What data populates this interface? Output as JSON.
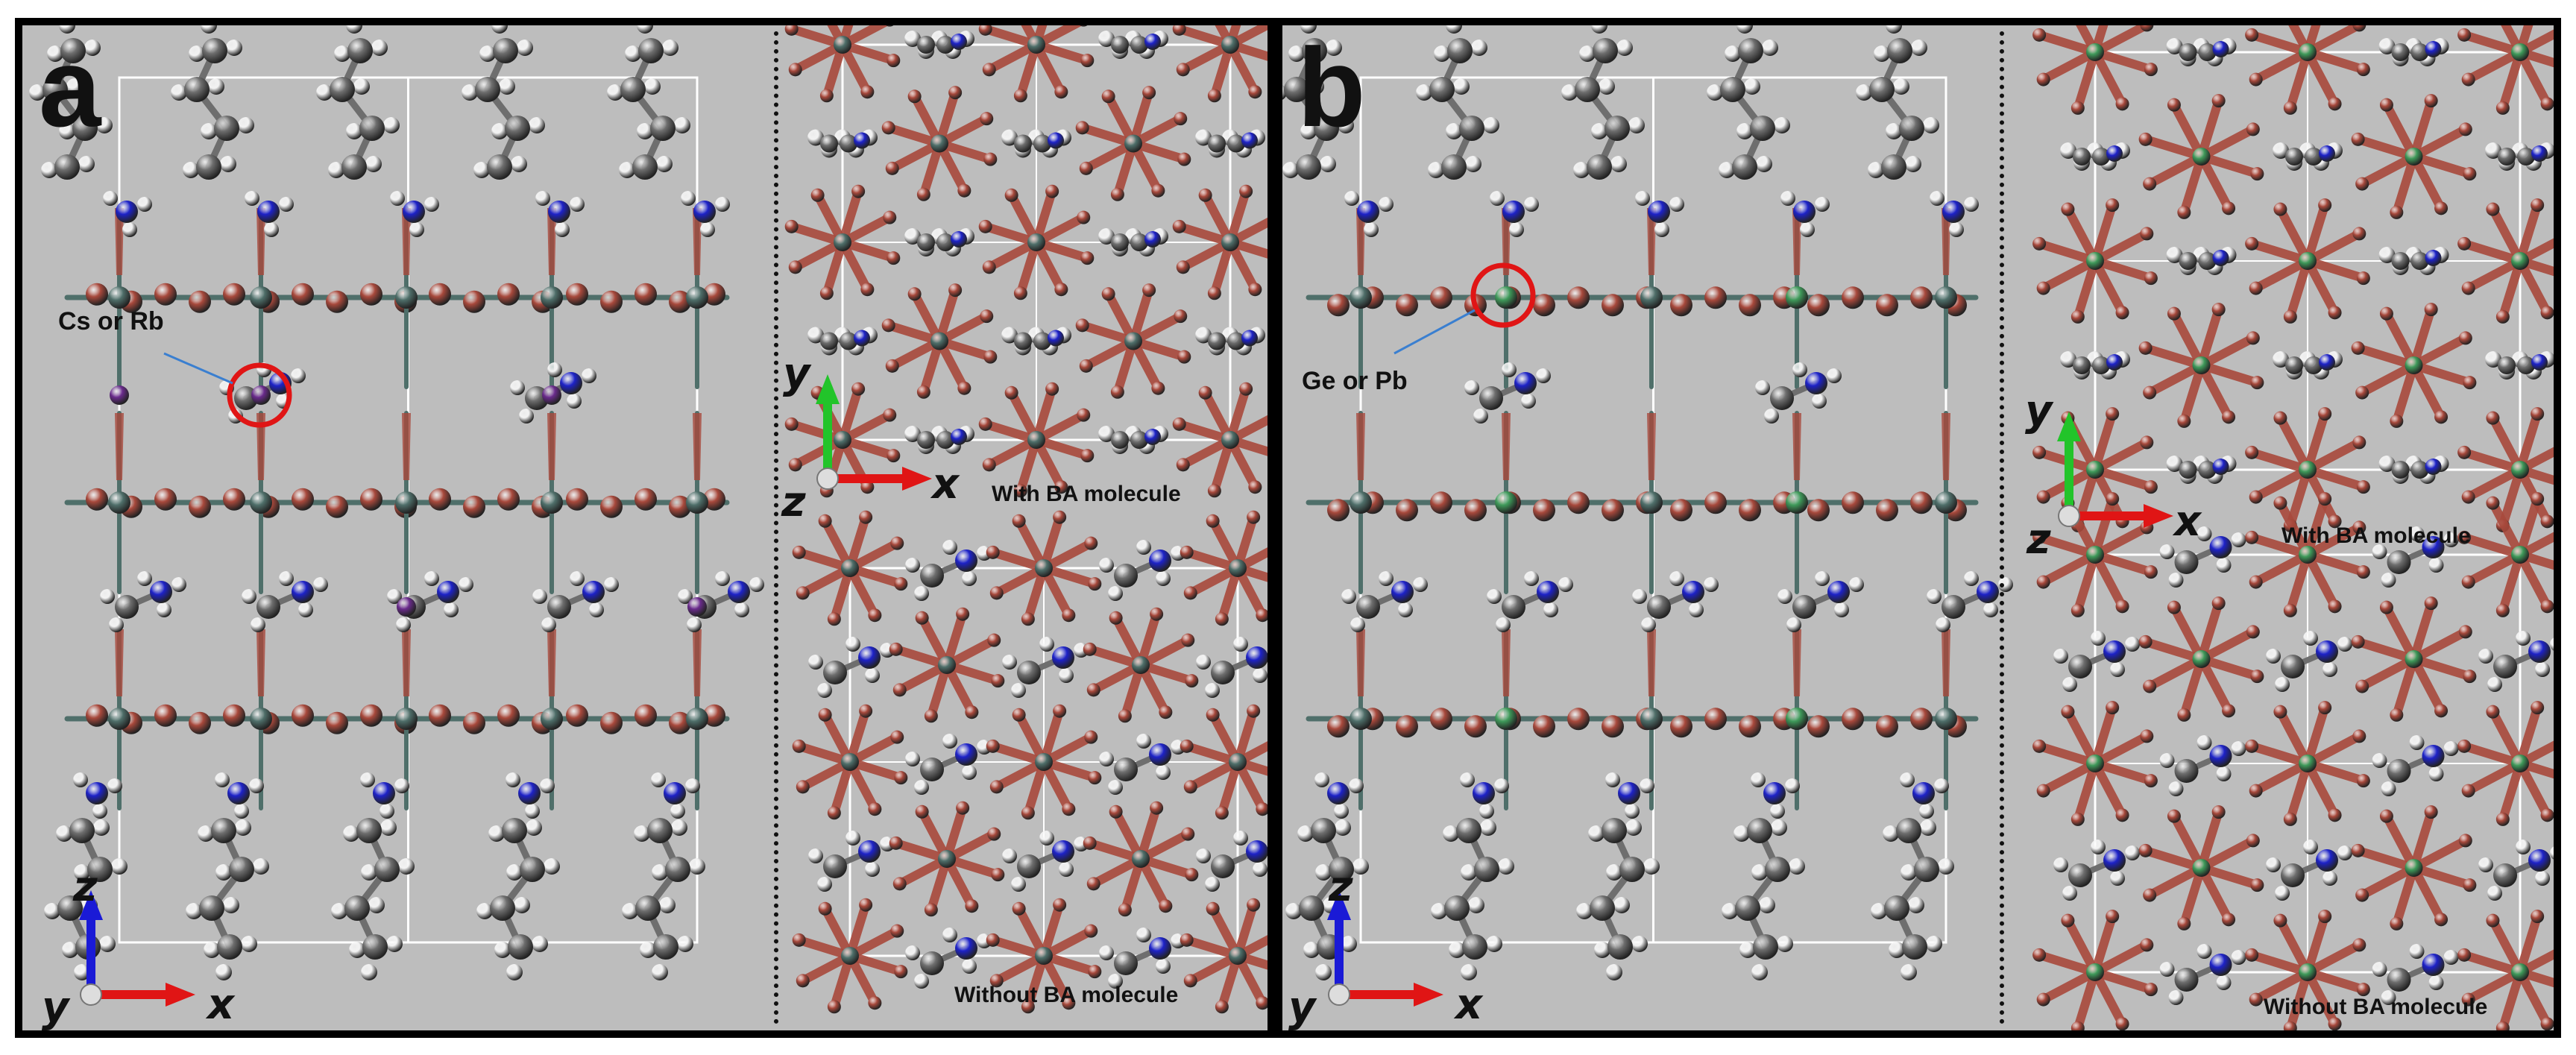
{
  "panels": {
    "a": {
      "letter": "a",
      "site_label": "Cs or Rb",
      "top_right_caption": "With BA molecule",
      "bottom_right_caption": "Without BA molecule",
      "main_axes": {
        "vertical": "z",
        "horizontal": "x",
        "out": "y"
      },
      "inset_axes": {
        "vertical": "y",
        "horizontal": "x",
        "out": "z"
      }
    },
    "b": {
      "letter": "b",
      "site_label": "Ge or Pb",
      "top_right_caption": "With BA molecule",
      "bottom_right_caption": "Without BA molecule",
      "main_axes": {
        "vertical": "z",
        "horizontal": "x",
        "out": "y"
      },
      "inset_axes": {
        "vertical": "y",
        "horizontal": "x",
        "out": "z"
      }
    }
  },
  "colors": {
    "background": "#bdbdbd",
    "halide": "#a8493c",
    "metal": "#4f6f6a",
    "ge_metal": "#3f9a5a",
    "carbon": "#6e6e6e",
    "nitrogen": "#1d22c8",
    "hydrogen": "#f2f2f2",
    "cation": "#6a2b8c",
    "highlight": "#e01515",
    "axis_z": "#1a1ad6",
    "axis_x": "#e01515",
    "axis_y": "#22c42a"
  },
  "icons": [
    "axis-triad-icon",
    "highlight-circle-icon",
    "pointer-arrow-icon"
  ]
}
